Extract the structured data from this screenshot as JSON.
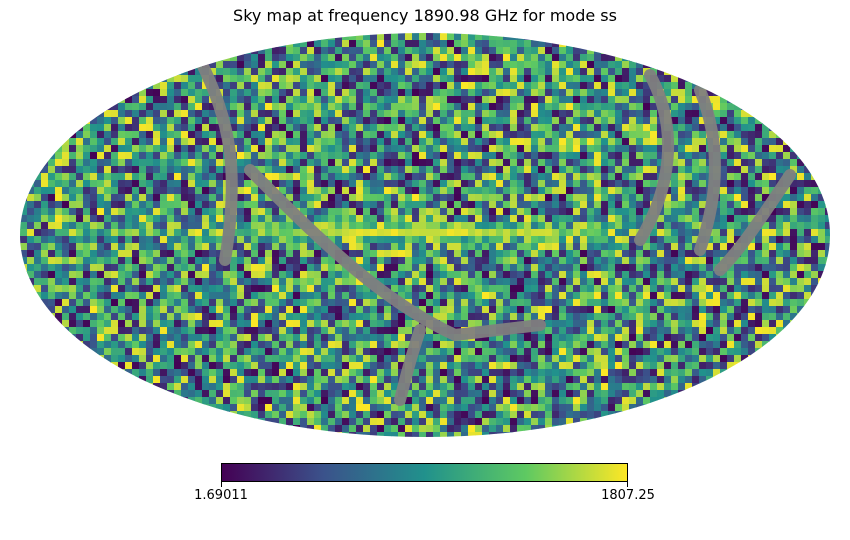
{
  "chart_data": {
    "type": "heatmap",
    "projection": "mollweide",
    "title": "Sky map at frequency 1890.98 GHz for mode ss",
    "colormap": "viridis",
    "colorbar": {
      "min": 1.69011,
      "max": 1807.25,
      "min_label": "1.69011",
      "max_label": "1807.25",
      "orientation": "horizontal",
      "stops": [
        "#440154",
        "#3b528b",
        "#21918c",
        "#5ec962",
        "#fde725"
      ]
    },
    "bad_value_color": "#808080",
    "features": [
      "bright band (values near max) along the galactic plane",
      "grey masked strips (missing data) crossing the sky"
    ]
  }
}
